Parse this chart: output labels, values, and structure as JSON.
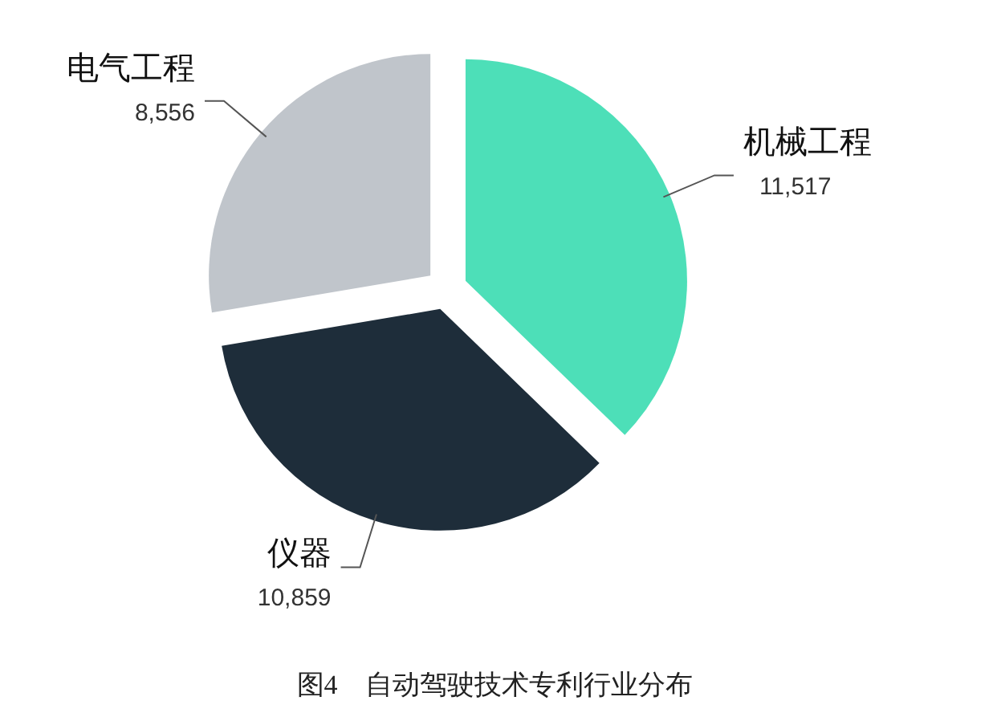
{
  "chart_data": {
    "type": "pie",
    "categories": [
      "机械工程",
      "仪器",
      "电气工程"
    ],
    "values": [
      11517,
      10859,
      8556
    ],
    "value_labels": [
      "11,517",
      "10,859",
      "8,556"
    ],
    "colors": [
      "#4ddfb8",
      "#1e2d3a",
      "#c0c5cb"
    ],
    "annotations": [
      "图4　自动驾驶技术专利行业分布"
    ]
  }
}
